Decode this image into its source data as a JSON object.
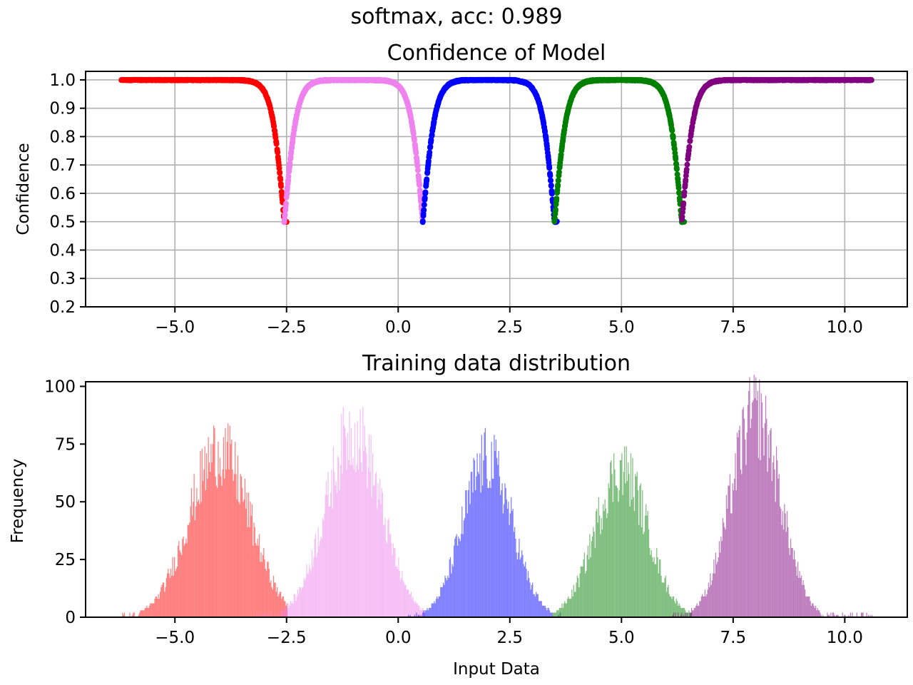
{
  "figure": {
    "suptitle": "softmax, acc: 0.989"
  },
  "chart_data": [
    {
      "type": "scatter",
      "title": "Confidence of Model",
      "xlabel": "",
      "ylabel": "Confidence",
      "xlim": [
        -7.0,
        11.4
      ],
      "ylim": [
        0.2,
        1.03
      ],
      "xticks": [
        -5.0,
        -2.5,
        0.0,
        2.5,
        5.0,
        7.5,
        10.0
      ],
      "xtick_labels": [
        "−5.0",
        "−2.5",
        "0.0",
        "2.5",
        "5.0",
        "7.5",
        "10.0"
      ],
      "yticks": [
        0.2,
        0.3,
        0.4,
        0.5,
        0.6,
        0.7,
        0.8,
        0.9,
        1.0
      ],
      "ytick_labels": [
        "0.2",
        "0.3",
        "0.4",
        "0.5",
        "0.6",
        "0.7",
        "0.8",
        "0.9",
        "1.0"
      ],
      "grid": true,
      "series": [
        {
          "color": "#ff0000",
          "x_range": [
            -6.2,
            -2.5
          ],
          "dip_right": -2.55,
          "dip_min": 0.5
        },
        {
          "color": "#ee82ee",
          "x_range": [
            -2.55,
            0.55
          ],
          "dip_left": -2.55,
          "dip_right": 0.55,
          "dip_min": 0.5
        },
        {
          "color": "#0000ff",
          "x_range": [
            0.55,
            3.55
          ],
          "dip_left": 0.55,
          "dip_right": 3.5,
          "dip_min": 0.5
        },
        {
          "color": "#008000",
          "x_range": [
            3.5,
            6.4
          ],
          "dip_left": 3.5,
          "dip_right": 6.35,
          "dip_min": 0.5
        },
        {
          "color": "#800080",
          "x_range": [
            6.35,
            10.6
          ],
          "dip_left": 6.35,
          "dip_min": 0.5
        }
      ]
    },
    {
      "type": "bar",
      "title": "Training data distribution",
      "xlabel": "Input Data",
      "ylabel": "Frequency",
      "xlim": [
        -7.0,
        11.4
      ],
      "ylim": [
        0,
        102
      ],
      "xticks": [
        -5.0,
        -2.5,
        0.0,
        2.5,
        5.0,
        7.5,
        10.0
      ],
      "xtick_labels": [
        "−5.0",
        "−2.5",
        "0.0",
        "2.5",
        "5.0",
        "7.5",
        "10.0"
      ],
      "yticks": [
        0,
        25,
        50,
        75,
        100
      ],
      "ytick_labels": [
        "0",
        "25",
        "50",
        "75",
        "100"
      ],
      "grid": false,
      "bin_width": 0.02,
      "series": [
        {
          "color": "#ff0000",
          "alpha": 0.5,
          "center": -4.0,
          "sd": 0.68,
          "peak": 72,
          "range": [
            -6.2,
            -2.5
          ]
        },
        {
          "color": "#ee82ee",
          "alpha": 0.5,
          "center": -1.0,
          "sd": 0.62,
          "peak": 80,
          "range": [
            -3.2,
            0.6
          ]
        },
        {
          "color": "#0000ff",
          "alpha": 0.5,
          "center": 2.0,
          "sd": 0.55,
          "peak": 68,
          "range": [
            0.2,
            3.7
          ]
        },
        {
          "color": "#008000",
          "alpha": 0.5,
          "center": 5.0,
          "sd": 0.58,
          "peak": 64,
          "range": [
            3.4,
            6.6
          ]
        },
        {
          "color": "#800080",
          "alpha": 0.5,
          "center": 8.0,
          "sd": 0.55,
          "peak": 88,
          "range": [
            6.0,
            10.6
          ]
        }
      ]
    }
  ]
}
